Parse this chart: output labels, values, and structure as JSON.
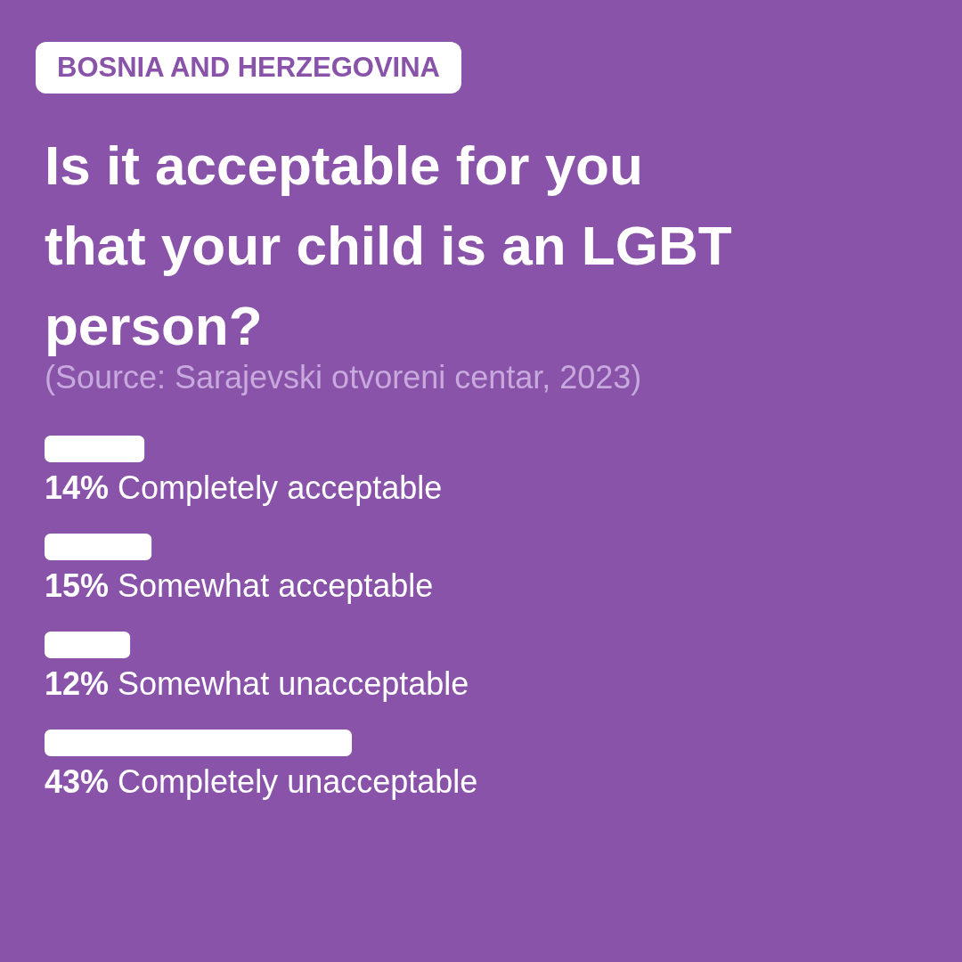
{
  "chart_data": {
    "type": "bar",
    "orientation": "horizontal",
    "subtitle": "BOSNIA AND HERZEGOVINA",
    "title": "Is it acceptable for you that your child is an LGBT person?",
    "annotations": [
      "(Source: Sarajevski otvoreni centar, 2023)"
    ],
    "categories": [
      "Completely acceptable",
      "Somewhat acceptable",
      "Somewhat unacceptable",
      "Completely unacceptable"
    ],
    "values": [
      14,
      15,
      12,
      43
    ],
    "value_labels": [
      "14%",
      "15%",
      "12%",
      "43%"
    ],
    "color": "#ffffff"
  }
}
